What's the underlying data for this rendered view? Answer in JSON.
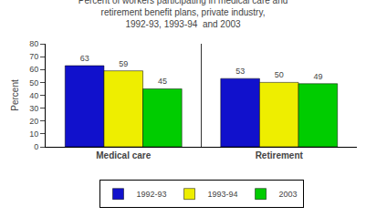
{
  "chart_data": {
    "type": "bar",
    "title": "Percent of workers participating in medical care and\nretirement benefit plans, private industry,\n1992-93, 1993-94  and 2003",
    "categories": [
      "Medical care",
      "Retirement"
    ],
    "series": [
      {
        "name": "1992-93",
        "color": "#1111cc",
        "values": [
          63,
          53
        ]
      },
      {
        "name": "1993-94",
        "color": "#eeee00",
        "values": [
          59,
          50
        ]
      },
      {
        "name": "2003",
        "color": "#00cc00",
        "values": [
          45,
          49
        ]
      }
    ],
    "ylabel": "Percent",
    "ylim": [
      0,
      80
    ],
    "yticks": [
      0,
      10,
      20,
      30,
      40,
      50,
      60,
      70,
      80
    ],
    "grid": false,
    "legend": "bottom",
    "data_labels": true
  }
}
